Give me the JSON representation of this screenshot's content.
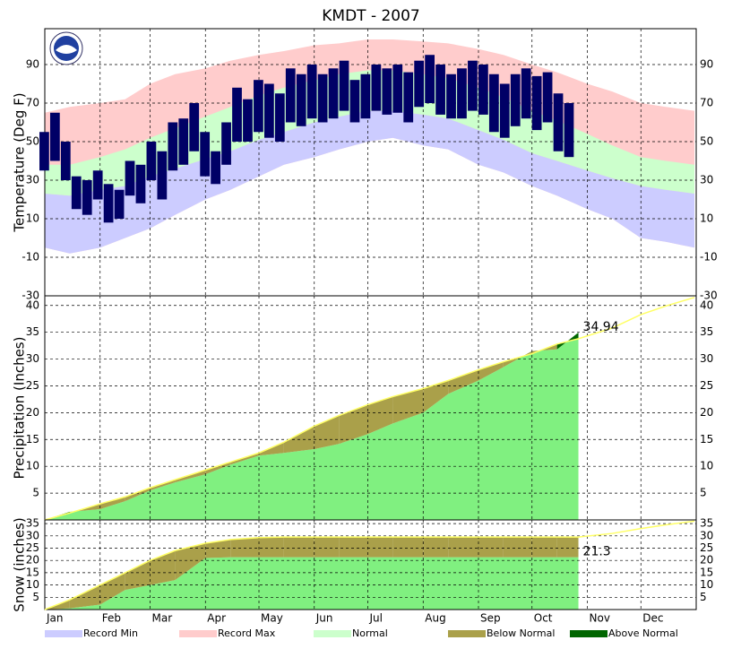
{
  "chart_data": [
    {
      "type": "temperature",
      "title": "KMDT - 2007",
      "ylabel": "Temperature (Deg F)",
      "ylim": [
        -30,
        108.6
      ],
      "yticks": [
        -30,
        -10,
        10,
        30,
        50,
        70,
        90
      ],
      "grid": true,
      "x": [
        1,
        15,
        32,
        46,
        60,
        74,
        91,
        105,
        121,
        135,
        152,
        166,
        182,
        196,
        213,
        227,
        244,
        258,
        274,
        288,
        305,
        319,
        335,
        349,
        365
      ],
      "record_max": [
        65,
        68,
        70,
        72,
        80,
        85,
        88,
        92,
        95,
        97,
        100,
        101,
        103,
        103,
        102,
        101,
        98,
        95,
        90,
        86,
        80,
        76,
        70,
        68,
        66
      ],
      "record_min": [
        -5,
        -8,
        -5,
        0,
        5,
        12,
        20,
        25,
        32,
        38,
        42,
        46,
        50,
        52,
        48,
        46,
        38,
        34,
        27,
        22,
        15,
        10,
        0,
        -2,
        -5
      ],
      "normal_max": [
        38,
        38,
        42,
        46,
        52,
        57,
        63,
        68,
        74,
        78,
        82,
        85,
        87,
        87,
        85,
        83,
        78,
        73,
        66,
        61,
        54,
        48,
        42,
        40,
        38
      ],
      "normal_min": [
        23,
        22,
        25,
        27,
        32,
        36,
        41,
        45,
        51,
        55,
        60,
        63,
        66,
        66,
        64,
        62,
        56,
        51,
        44,
        40,
        35,
        31,
        27,
        25,
        23
      ],
      "daily": {
        "x": [
          1,
          7,
          13,
          19,
          25,
          31,
          37,
          43,
          49,
          55,
          61,
          67,
          73,
          79,
          85,
          91,
          97,
          103,
          109,
          115,
          121,
          127,
          133,
          139,
          145,
          151,
          157,
          163,
          169,
          175,
          181,
          187,
          193,
          199,
          205,
          211,
          217,
          223,
          229,
          235,
          241,
          247,
          253,
          259,
          265,
          271,
          277,
          283,
          289,
          295
        ],
        "high": [
          55,
          65,
          50,
          32,
          30,
          35,
          28,
          25,
          40,
          38,
          50,
          45,
          60,
          62,
          70,
          55,
          45,
          60,
          78,
          72,
          82,
          80,
          75,
          88,
          85,
          90,
          85,
          88,
          92,
          82,
          85,
          90,
          88,
          90,
          86,
          92,
          95,
          90,
          85,
          88,
          92,
          90,
          85,
          80,
          85,
          88,
          84,
          86,
          75,
          70
        ],
        "low": [
          35,
          40,
          30,
          15,
          12,
          20,
          8,
          10,
          22,
          18,
          30,
          20,
          35,
          38,
          45,
          32,
          28,
          38,
          50,
          50,
          55,
          52,
          50,
          60,
          58,
          62,
          60,
          62,
          66,
          60,
          62,
          66,
          64,
          65,
          60,
          68,
          70,
          64,
          62,
          62,
          66,
          64,
          55,
          52,
          58,
          62,
          56,
          60,
          45,
          42
        ],
        "color": "#000066"
      }
    },
    {
      "type": "cumulative",
      "ylabel": "Precipitation (Inches)",
      "ylim": [
        0,
        41.8
      ],
      "yticks": [
        5,
        10,
        15,
        20,
        25,
        30,
        35,
        40
      ],
      "grid": true,
      "x": [
        1,
        15,
        32,
        46,
        60,
        74,
        91,
        105,
        121,
        135,
        152,
        166,
        182,
        196,
        213,
        227,
        244,
        258,
        274,
        288,
        300,
        319,
        335,
        349,
        365
      ],
      "normal": [
        0,
        1.3,
        3.0,
        4.3,
        6.0,
        7.5,
        9.3,
        10.8,
        12.5,
        14.5,
        17.5,
        19.5,
        21.5,
        23,
        24.5,
        26,
        28,
        29.5,
        31,
        32.8,
        33.8,
        35.8,
        38.3,
        39.9,
        41.5
      ],
      "actual": [
        0,
        1.5,
        2.0,
        3.5,
        5.5,
        7,
        8.5,
        10.3,
        12,
        12.5,
        13.2,
        14.2,
        16,
        18,
        20,
        23.5,
        26,
        28.5,
        31.5,
        31.8,
        34.94,
        null,
        null,
        null,
        null
      ],
      "label_index": 20
    },
    {
      "type": "cumulative",
      "ylabel": "Snow (inches)",
      "ylim": [
        0,
        36.5
      ],
      "yticks": [
        5,
        10,
        15,
        20,
        25,
        30,
        35
      ],
      "grid": true,
      "x": [
        1,
        15,
        32,
        46,
        60,
        74,
        91,
        105,
        121,
        135,
        152,
        166,
        182,
        196,
        213,
        227,
        244,
        258,
        274,
        288,
        300,
        319,
        335,
        349,
        365
      ],
      "normal": [
        0,
        4,
        10,
        15,
        20,
        24,
        27,
        28.5,
        29.3,
        29.5,
        29.5,
        29.5,
        29.5,
        29.5,
        29.5,
        29.5,
        29.5,
        29.5,
        29.5,
        29.5,
        29.5,
        31,
        33,
        34.5,
        36
      ],
      "actual": [
        0,
        0.5,
        2,
        8,
        10,
        12,
        21,
        21.3,
        21.3,
        21.3,
        21.3,
        21.3,
        21.3,
        21.3,
        21.3,
        21.3,
        21.3,
        21.3,
        21.3,
        21.3,
        21.3,
        null,
        null,
        null,
        null
      ],
      "label_index": 20
    }
  ],
  "xlim": [
    1,
    366
  ],
  "xticks": [
    {
      "value": 1,
      "label": "Jan"
    },
    {
      "value": 32,
      "label": "Feb"
    },
    {
      "value": 60,
      "label": "Mar"
    },
    {
      "value": 91,
      "label": "Apr"
    },
    {
      "value": 121,
      "label": "May"
    },
    {
      "value": 152,
      "label": "Jun"
    },
    {
      "value": 182,
      "label": "Jul"
    },
    {
      "value": 213,
      "label": "Aug"
    },
    {
      "value": 244,
      "label": "Sep"
    },
    {
      "value": 274,
      "label": "Oct"
    },
    {
      "value": 305,
      "label": "Nov"
    },
    {
      "value": 335,
      "label": "Dec"
    }
  ],
  "legend": [
    {
      "name": "Record Min",
      "color": "#ccccff"
    },
    {
      "name": "Record Max",
      "color": "#ffcccc"
    },
    {
      "name": "Normal",
      "color": "#ccffcc"
    },
    {
      "name": "Below Normal",
      "color": "#aaa04a"
    },
    {
      "name": "Above Normal",
      "color": "#006600"
    }
  ],
  "colors": {
    "precip": "#80f080",
    "normal_line": "#ffff66"
  }
}
